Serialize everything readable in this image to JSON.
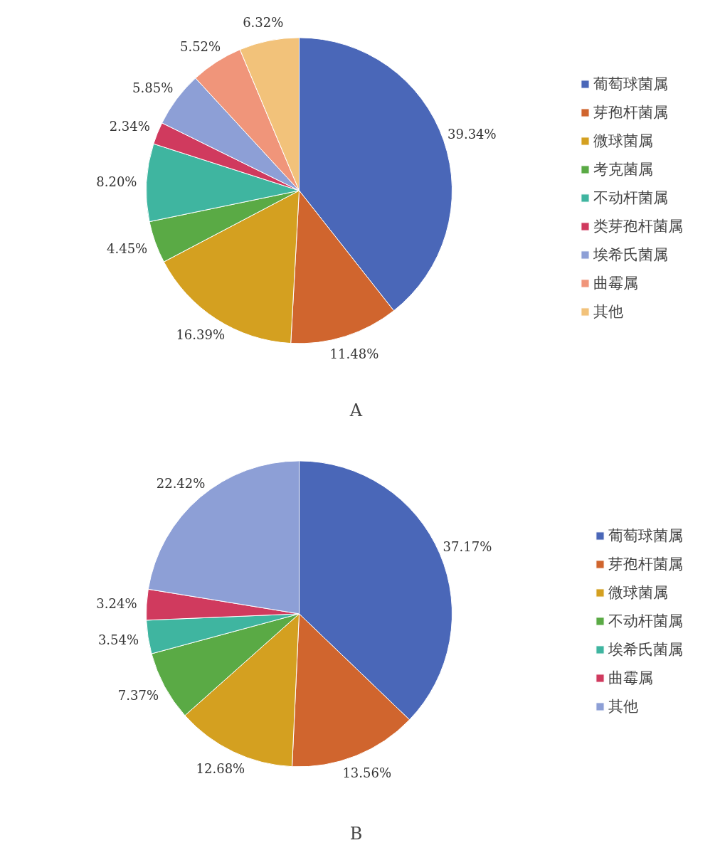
{
  "chart_data": [
    {
      "type": "pie",
      "title": "A",
      "legend": "right",
      "categories": [
        "葡萄球菌属",
        "芽孢杆菌属",
        "微球菌属",
        "考克菌属",
        "不动杆菌属",
        "类芽孢杆菌属",
        "埃希氏菌属",
        "曲霉属",
        "其他"
      ],
      "values": [
        39.34,
        11.48,
        16.39,
        4.45,
        8.2,
        2.34,
        5.85,
        5.52,
        6.32
      ],
      "value_labels": [
        "39.34%",
        "11.48%",
        "16.39%",
        "4.45%",
        "8.20%",
        "2.34%",
        "5.85%",
        "5.52%",
        "6.32%"
      ],
      "colors": [
        "#4a67b8",
        "#d0652e",
        "#d4a020",
        "#5aaa45",
        "#3fb5a0",
        "#d03a5e",
        "#8d9fd6",
        "#f0957a",
        "#f2c27a"
      ]
    },
    {
      "type": "pie",
      "title": "B",
      "legend": "right",
      "categories": [
        "葡萄球菌属",
        "芽孢杆菌属",
        "微球菌属",
        "不动杆菌属",
        "埃希氏菌属",
        "曲霉属",
        "其他"
      ],
      "values": [
        37.17,
        13.56,
        12.68,
        7.37,
        3.54,
        3.24,
        22.42
      ],
      "value_labels": [
        "37.17%",
        "13.56%",
        "12.68%",
        "7.37%",
        "3.54%",
        "3.24%",
        "22.42%"
      ],
      "colors": [
        "#4a67b8",
        "#d0652e",
        "#d4a020",
        "#5aaa45",
        "#3fb5a0",
        "#d03a5e",
        "#8d9fd6"
      ]
    }
  ]
}
